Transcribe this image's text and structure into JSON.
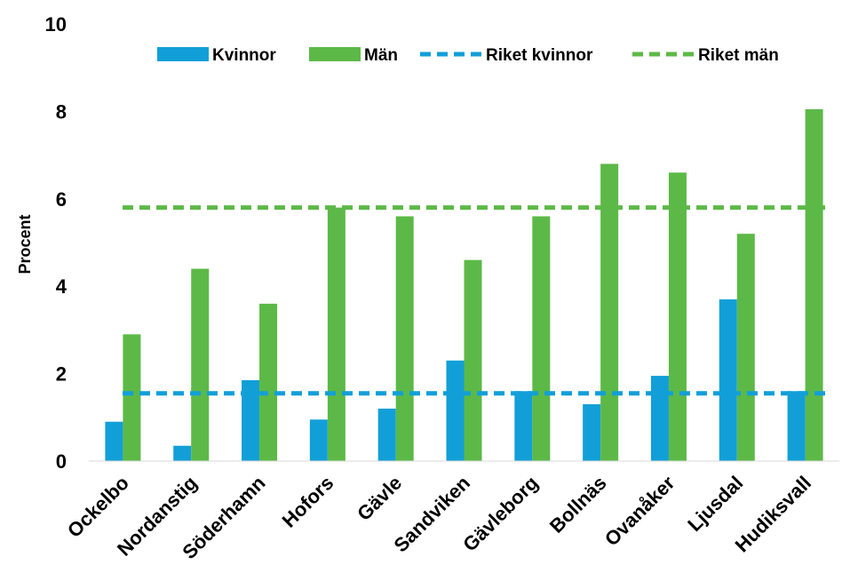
{
  "chart_data": {
    "type": "bar",
    "title": "",
    "xlabel": "",
    "ylabel": "Procent",
    "ylim": [
      0,
      10
    ],
    "yticks": [
      0,
      2,
      4,
      6,
      8,
      10
    ],
    "grid": false,
    "legend_position": "top",
    "categories": [
      "Ockelbo",
      "Nordanstig",
      "Söderhamn",
      "Hofors",
      "Gävle",
      "Sandviken",
      "Gävleborg",
      "Bollnäs",
      "Ovanåker",
      "Ljusdal",
      "Hudiksvall"
    ],
    "series": [
      {
        "name": "Kvinnor",
        "color": "#129fd8",
        "values": [
          0.9,
          0.35,
          1.85,
          0.95,
          1.2,
          2.3,
          1.6,
          1.3,
          1.95,
          3.7,
          1.6
        ]
      },
      {
        "name": "Män",
        "color": "#5cb947",
        "values": [
          2.9,
          4.4,
          3.6,
          5.8,
          5.6,
          4.6,
          5.6,
          6.8,
          6.6,
          5.2,
          8.05
        ]
      }
    ],
    "reference_lines": [
      {
        "name": "Riket kvinnor",
        "color": "#129fd8",
        "value": 1.55,
        "style": "dashed"
      },
      {
        "name": "Riket män",
        "color": "#5cb947",
        "value": 5.8,
        "style": "dashed"
      }
    ]
  }
}
